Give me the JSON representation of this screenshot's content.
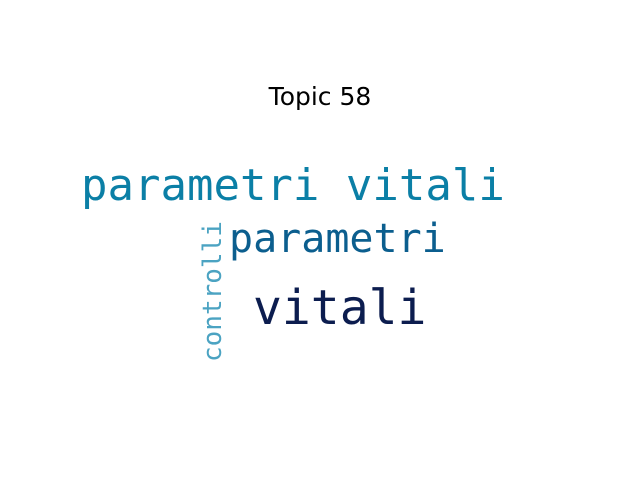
{
  "title": "Topic 58",
  "words": [
    {
      "text": "parametri vitali",
      "color": "#0b7fa6"
    },
    {
      "text": "parametri",
      "color": "#0b5e8e"
    },
    {
      "text": "vitali",
      "color": "#0c1d4f"
    },
    {
      "text": "controlli",
      "color": "#4ba3c2"
    }
  ]
}
